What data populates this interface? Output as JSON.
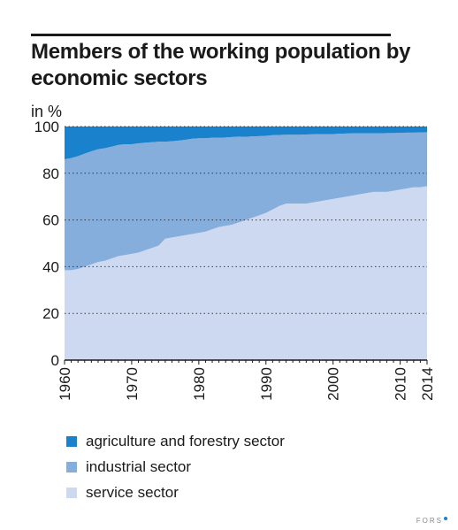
{
  "title": "Members of the working population by economic sectors",
  "unit_label": "in %",
  "credit": "FORS",
  "colors": {
    "agriculture": "#1a82cc",
    "industrial": "#86aedd",
    "service": "#ccd9f1",
    "grid": "#222222",
    "credit_dot": "#1a82cc"
  },
  "chart_data": {
    "type": "area",
    "stacked": true,
    "title": "Members of the working population by economic sectors",
    "ylabel": "in %",
    "xlabel": "",
    "ylim": [
      0,
      100
    ],
    "xlim": [
      1960,
      2014
    ],
    "y_ticks": [
      0,
      20,
      40,
      60,
      80,
      100
    ],
    "x_ticks": [
      1960,
      1970,
      1980,
      1990,
      2000,
      2010,
      2014
    ],
    "grid": "horizontal dotted",
    "legend_position": "bottom",
    "x": [
      1960,
      1961,
      1962,
      1963,
      1964,
      1965,
      1966,
      1967,
      1968,
      1969,
      1970,
      1971,
      1972,
      1973,
      1974,
      1975,
      1976,
      1977,
      1978,
      1979,
      1980,
      1981,
      1982,
      1983,
      1984,
      1985,
      1986,
      1987,
      1988,
      1989,
      1990,
      1991,
      1992,
      1993,
      1994,
      1995,
      1996,
      1997,
      1998,
      1999,
      2000,
      2001,
      2002,
      2003,
      2004,
      2005,
      2006,
      2007,
      2008,
      2009,
      2010,
      2011,
      2012,
      2013,
      2014
    ],
    "series": [
      {
        "name": "service sector",
        "values": [
          38.5,
          38.5,
          39,
          40,
          41,
          42,
          42.5,
          43.5,
          44.5,
          45,
          45.5,
          46,
          47,
          48,
          49,
          52,
          52.5,
          53,
          53.5,
          54,
          54.5,
          55,
          56,
          57,
          57.5,
          58,
          59,
          60,
          61,
          62,
          63,
          64.5,
          66,
          67,
          67,
          67,
          67,
          67.5,
          68,
          68.5,
          69,
          69.5,
          70,
          70.5,
          71,
          71.5,
          72,
          72,
          72,
          72.5,
          73,
          73.5,
          74,
          74,
          74.5
        ]
      },
      {
        "name": "industrial sector",
        "values": [
          47.5,
          48,
          48.3,
          48.4,
          48.4,
          48.3,
          48.2,
          47.9,
          47.6,
          47.4,
          46.9,
          46.8,
          46.1,
          45.3,
          44.5,
          41.5,
          41.2,
          41,
          40.8,
          40.8,
          40.5,
          40,
          39.2,
          38.2,
          37.8,
          37.5,
          36.7,
          35.6,
          34.8,
          33.9,
          33,
          31.8,
          30.4,
          29.5,
          29.5,
          29.5,
          29.6,
          29.2,
          28.8,
          28.3,
          27.8,
          27.4,
          27,
          26.6,
          26.1,
          25.6,
          25.1,
          25.1,
          25.2,
          24.7,
          24.3,
          23.9,
          23.4,
          23.5,
          23.1
        ]
      },
      {
        "name": "agriculture and forestry sector",
        "values": [
          14,
          13.5,
          12.7,
          11.6,
          10.6,
          9.7,
          9.3,
          8.6,
          7.9,
          7.6,
          7.6,
          7.2,
          6.9,
          6.7,
          6.5,
          6.5,
          6.3,
          6,
          5.7,
          5.2,
          5,
          5,
          4.8,
          4.8,
          4.7,
          4.5,
          4.3,
          4.4,
          4.2,
          4.1,
          4,
          3.7,
          3.6,
          3.5,
          3.5,
          3.5,
          3.4,
          3.3,
          3.2,
          3.2,
          3.2,
          3.1,
          3,
          2.9,
          2.9,
          2.9,
          2.9,
          2.9,
          2.8,
          2.8,
          2.7,
          2.6,
          2.6,
          2.5,
          2.4
        ]
      }
    ]
  },
  "legend": [
    {
      "label": "agriculture and forestry sector",
      "color_key": "agriculture"
    },
    {
      "label": "industrial sector",
      "color_key": "industrial"
    },
    {
      "label": "service sector",
      "color_key": "service"
    }
  ]
}
